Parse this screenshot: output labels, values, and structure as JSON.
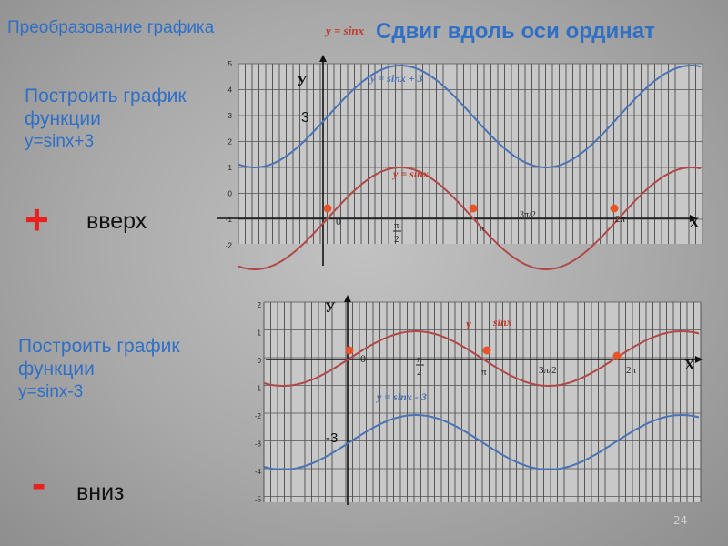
{
  "slide": {
    "title": "Преобразование графика",
    "formula_top": "y = sinx",
    "subtitle": "Сдвиг вдоль оси ординат",
    "page_number": "24"
  },
  "upper": {
    "task_line1": "Построить график",
    "task_line2": "функции",
    "task_line3": "y=sinx+3",
    "sign": "+",
    "direction": "вверх",
    "shifted_label": "y = sinx + 3",
    "base_label": "y = sinx",
    "x_axis_label": "X",
    "y_axis_label": "У",
    "shift_value_label": "3",
    "origin_label": "0",
    "half_pi_num": "π",
    "half_pi_den": "2",
    "pi_label": "π",
    "three_half_pi_label": "3π/2",
    "two_pi_label": "2π",
    "y_ticks": [
      "5",
      "4",
      "3",
      "2",
      "1",
      "0",
      "-1",
      "-2"
    ]
  },
  "lower": {
    "task_line1": "Построить график",
    "task_line2": "функции",
    "task_line3": "y=sinx-3",
    "sign": "-",
    "direction": "вниз",
    "shifted_label": "y = sinx - 3",
    "base_label_y": "y",
    "base_label_sinx": "sinx",
    "x_axis_label": "X",
    "y_axis_label": "У",
    "shift_value_label": "-3",
    "origin_label": "0",
    "half_pi_num": "π",
    "half_pi_den": "2",
    "pi_label": "π",
    "three_half_pi_label": "3π/2",
    "two_pi_label": "2π",
    "y_ticks": [
      "2",
      "1",
      "0",
      "-1",
      "-2",
      "-3",
      "-4",
      "-5"
    ]
  },
  "colors": {
    "title_blue": "#2f6fc6",
    "sinx_curve": "#b04848",
    "shifted_curve": "#4a73b5",
    "accent_red": "#e8211f",
    "point": "#e8542a"
  }
}
